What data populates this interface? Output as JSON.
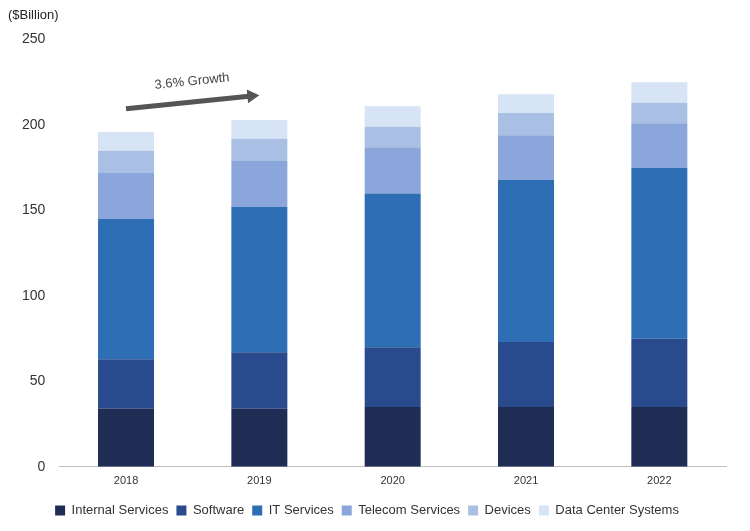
{
  "chart_data": {
    "type": "bar",
    "ylabel": "($Billion)",
    "categories": [
      "2018",
      "2019",
      "2020",
      "2021",
      "2022"
    ],
    "series": [
      {
        "name": "Internal Services",
        "color": "#1f2d55",
        "values": [
          34,
          34,
          35,
          35,
          35
        ]
      },
      {
        "name": "Software",
        "color": "#2a4a8e",
        "values": [
          29,
          33,
          35,
          38,
          40
        ]
      },
      {
        "name": "IT Services",
        "color": "#2e6eb5",
        "values": [
          82,
          85,
          90,
          95,
          100
        ]
      },
      {
        "name": "Telecom Services",
        "color": "#8aa6da",
        "values": [
          27,
          27,
          27,
          26,
          26
        ]
      },
      {
        "name": "Devices",
        "color": "#a9bfe3",
        "values": [
          13,
          13,
          12,
          13,
          12
        ]
      },
      {
        "name": "Data Center Systems",
        "color": "#d6e4f5",
        "values": [
          11,
          11,
          12,
          11,
          12
        ]
      }
    ],
    "ylim": [
      0,
      250
    ],
    "yticks": [
      0,
      50,
      100,
      150,
      200,
      250
    ],
    "stacked": true,
    "grid": false,
    "legend": "bottom",
    "annotations": [
      {
        "text": "3.6% Growth"
      }
    ]
  }
}
